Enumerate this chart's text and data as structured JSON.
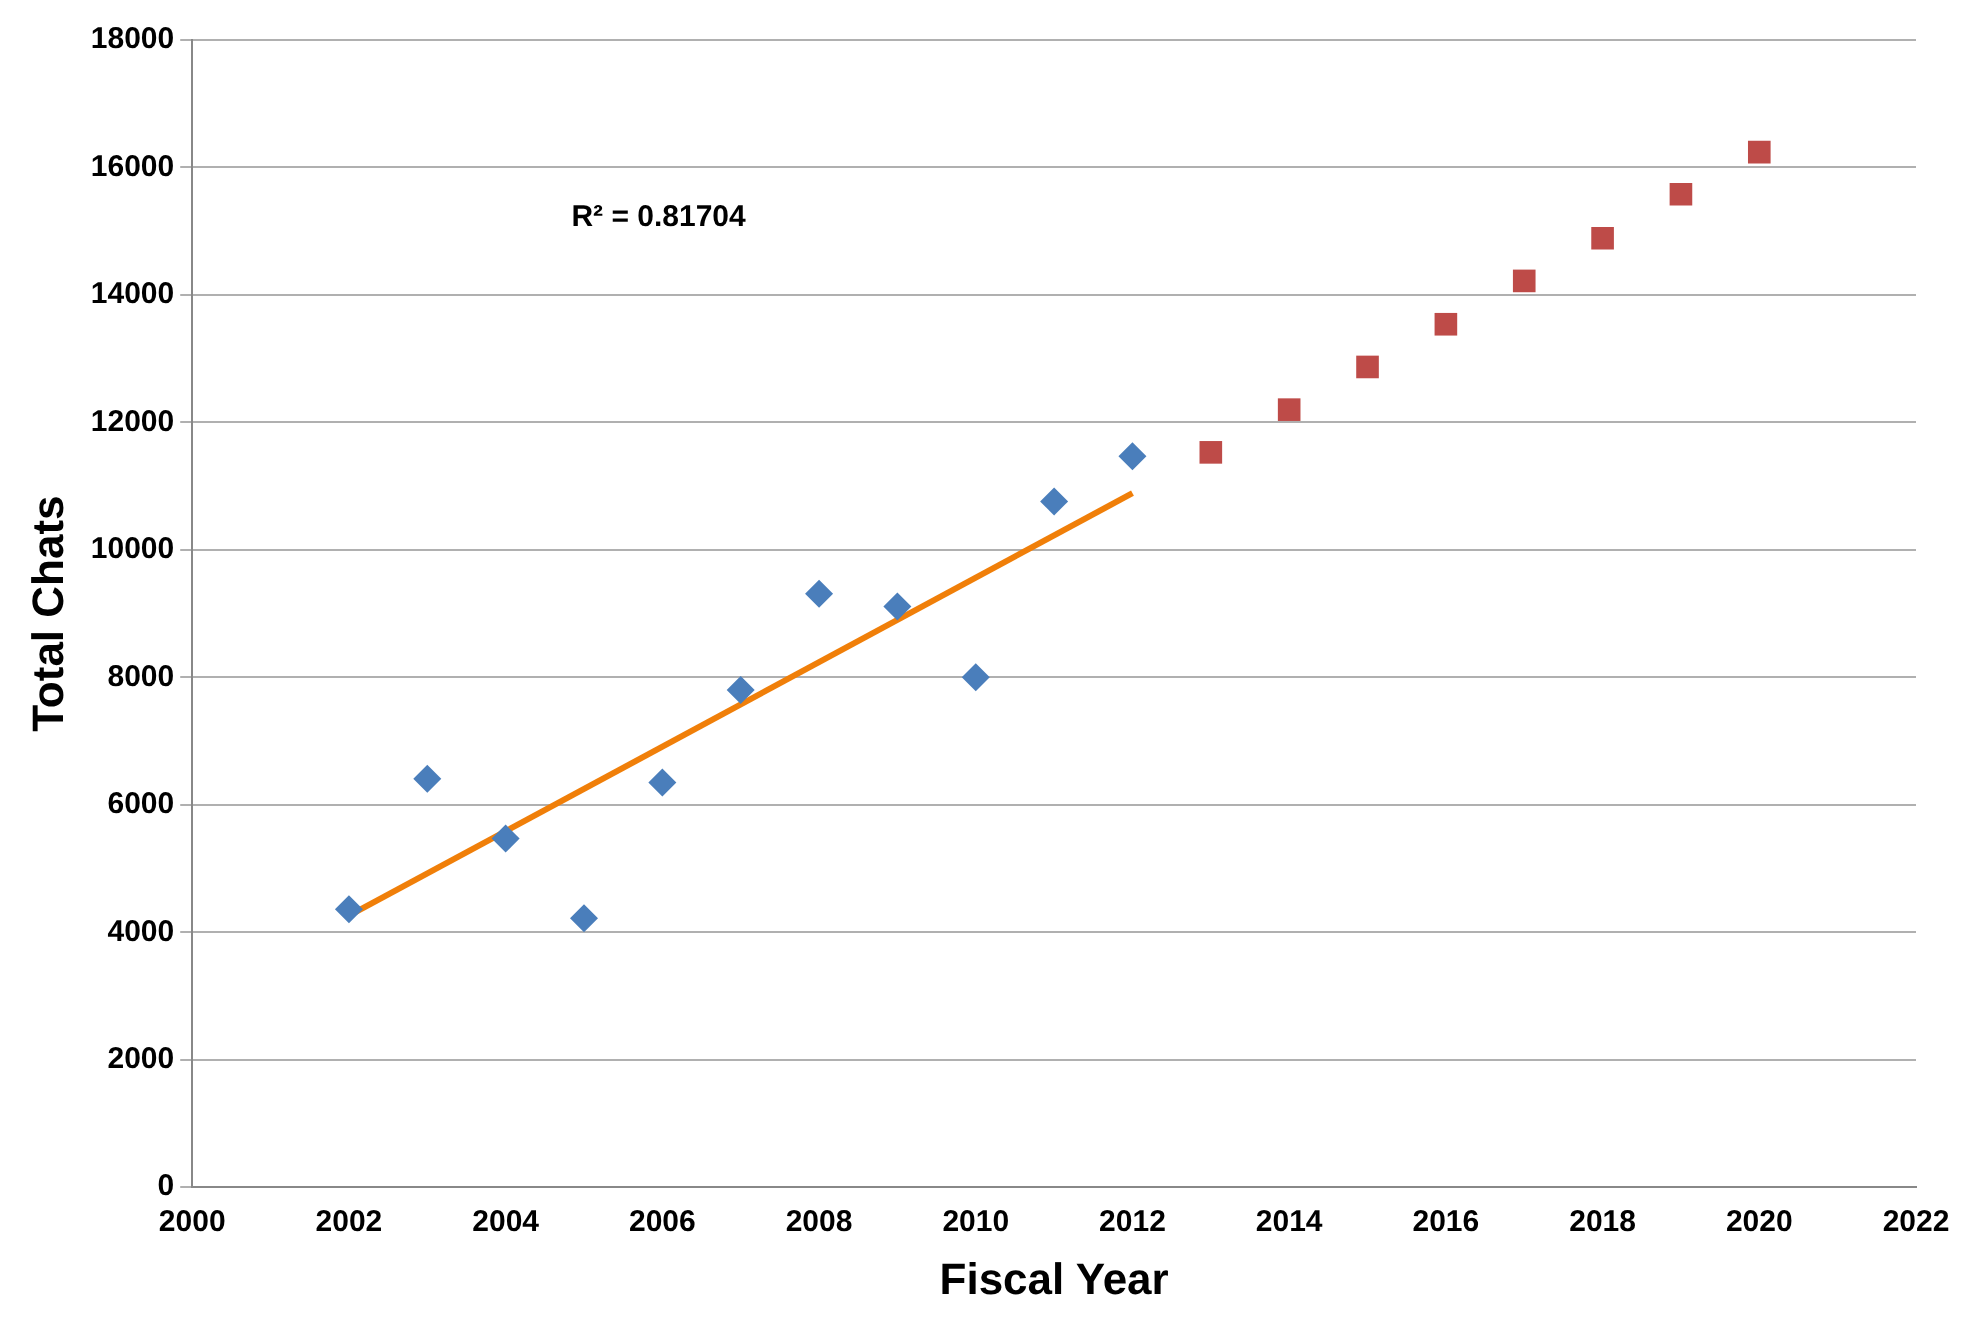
{
  "chart_data": {
    "type": "scatter",
    "xlabel": "Fiscal Year",
    "ylabel": "Total Chats",
    "annotations": [
      "R² = 0.81704"
    ],
    "xlim": [
      2000,
      2022
    ],
    "xticks": [
      2000,
      2002,
      2004,
      2006,
      2008,
      2010,
      2012,
      2014,
      2016,
      2018,
      2020,
      2022
    ],
    "ylim": [
      0,
      18000
    ],
    "yticks": [
      0,
      2000,
      4000,
      6000,
      8000,
      10000,
      12000,
      14000,
      16000,
      18000
    ],
    "grid": "y",
    "legend": false,
    "series": [
      {
        "marker": "diamond",
        "color": "#4a7ebb",
        "x": [
          2002,
          2003,
          2004,
          2005,
          2006,
          2007,
          2008,
          2009,
          2010,
          2011,
          2012
        ],
        "values": [
          4360,
          6410,
          5470,
          4220,
          6350,
          7800,
          9310,
          9110,
          8000,
          10760,
          11470
        ]
      },
      {
        "marker": "square",
        "color": "#be4b48",
        "x": [
          2013,
          2014,
          2015,
          2016,
          2017,
          2018,
          2019,
          2020
        ],
        "values": [
          11530,
          12200,
          12870,
          13540,
          14220,
          14890,
          15580,
          16240
        ]
      },
      {
        "type": "line",
        "marker": "none",
        "line_style": "solid",
        "color": "#f07f09",
        "x": [
          2002,
          2012
        ],
        "values": [
          4260,
          10890
        ]
      }
    ]
  }
}
